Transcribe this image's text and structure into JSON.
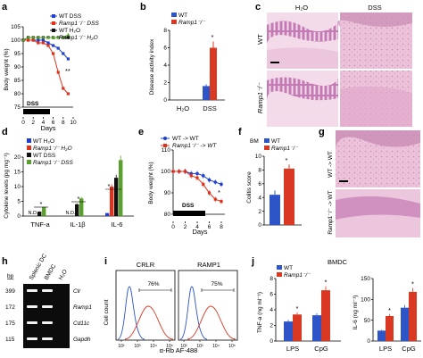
{
  "panels": {
    "a": "a",
    "b": "b",
    "c": "c",
    "d": "d",
    "e": "e",
    "f": "f",
    "g": "g",
    "h": "h",
    "i": "i",
    "j": "j"
  },
  "colors": {
    "wt_dss": "#1f3fd0",
    "ko_dss": "#e0321a",
    "wt_h2o": "#111111",
    "ko_h2o": "#5aa02c",
    "wt": "#2e55c8",
    "ko": "#d93822",
    "tissue": "#e6b0d0",
    "stain": "#9a4a9c"
  },
  "a": {
    "ylabel": "Body weight (%)",
    "xlabel": "Days",
    "yticks": [
      "105",
      "100",
      "95",
      "90",
      "85",
      "80",
      "75"
    ],
    "xticks": [
      "0",
      "2",
      "4",
      "6",
      "8",
      "10"
    ],
    "legend": [
      "WT DSS",
      "Ramp1⁻/⁻ DSS",
      "WT H₂O",
      "Ramp1⁻/⁻ H₂O"
    ],
    "bar_label": "DSS",
    "stars": "**",
    "chart_data": {
      "type": "line",
      "x": [
        0,
        1,
        2,
        3,
        4,
        5,
        6,
        7,
        8,
        9
      ],
      "xlabel": "Days",
      "ylabel": "Body weight (%)",
      "ylim": [
        75,
        105
      ],
      "series": [
        {
          "name": "WT DSS",
          "values": [
            100,
            100,
            100,
            100,
            100,
            99,
            98,
            97,
            95,
            93
          ]
        },
        {
          "name": "Ramp1⁻/⁻ DSS",
          "values": [
            100,
            100,
            100,
            99,
            99,
            98,
            95,
            88,
            82,
            80
          ]
        },
        {
          "name": "WT H₂O",
          "values": [
            100,
            101,
            101,
            101,
            101,
            101,
            101,
            101,
            101,
            101
          ]
        },
        {
          "name": "Ramp1⁻/⁻ H₂O",
          "values": [
            100,
            101,
            101,
            101,
            101,
            101,
            101,
            101,
            101,
            102
          ]
        }
      ]
    }
  },
  "b": {
    "ylabel": "Disease activity index",
    "legend": [
      "WT",
      "Ramp1⁻/⁻"
    ],
    "yticks": [
      "0",
      "2",
      "4",
      "6",
      "8"
    ],
    "groups": [
      "H₂O",
      "DSS"
    ],
    "stars": "*",
    "chart_data": {
      "type": "bar",
      "categories": [
        "H₂O",
        "DSS"
      ],
      "ylabel": "Disease activity index",
      "ylim": [
        0,
        8
      ],
      "series": [
        {
          "name": "WT",
          "values": [
            0,
            1.6
          ]
        },
        {
          "name": "Ramp1⁻/⁻",
          "values": [
            0,
            6.0
          ]
        }
      ]
    }
  },
  "c": {
    "col1": "H₂O",
    "col2": "DSS",
    "row1": "WT",
    "row2": "Ramp1⁻/⁻"
  },
  "d": {
    "ylabel": "Cytokine levels (pg mg⁻¹)",
    "yticks": [
      "0",
      "5",
      "10",
      "15",
      "20"
    ],
    "legend": [
      "WT H₂O",
      "Ramp1⁻/⁻ H₂O",
      "WT DSS",
      "Ramp1⁻/⁻ DSS"
    ],
    "groups": [
      "TNF-a",
      "IL-1β",
      "IL-6"
    ],
    "nd": "N.D.",
    "stars": "*",
    "chart_data": {
      "type": "bar",
      "categories": [
        "TNF-a",
        "IL-1β",
        "IL-6"
      ],
      "ylabel": "Cytokine levels (pg mg⁻¹)",
      "ylim": [
        0,
        20
      ],
      "series": [
        {
          "name": "WT H₂O",
          "values": [
            0,
            0,
            1
          ]
        },
        {
          "name": "Ramp1⁻/⁻ H₂O",
          "values": [
            0,
            0,
            10
          ]
        },
        {
          "name": "WT DSS",
          "values": [
            1.5,
            4,
            13
          ]
        },
        {
          "name": "Ramp1⁻/⁻ DSS",
          "values": [
            3,
            6,
            19
          ]
        }
      ]
    }
  },
  "e": {
    "ylabel": "Body weight (%)",
    "xlabel": "Days",
    "yticks": [
      "110",
      "100",
      "90",
      "80"
    ],
    "xticks": [
      "0",
      "2",
      "4",
      "6",
      "8"
    ],
    "legend": [
      "WT -> WT",
      "Ramp1⁻/⁻ -> WT"
    ],
    "bar_label": "DSS",
    "stars": "*",
    "chart_data": {
      "type": "line",
      "x": [
        0,
        1,
        2,
        3,
        4,
        5,
        6,
        7,
        8
      ],
      "xlabel": "Days",
      "ylabel": "Body weight (%)",
      "ylim": [
        80,
        110
      ],
      "series": [
        {
          "name": "WT -> WT",
          "values": [
            100,
            100,
            100,
            99,
            99,
            98,
            96,
            95,
            94
          ]
        },
        {
          "name": "Ramp1⁻/⁻ -> WT",
          "values": [
            100,
            100,
            100,
            98,
            97,
            94,
            90,
            87,
            86
          ]
        }
      ]
    }
  },
  "f": {
    "ylabel": "Colitis score",
    "legend_title": "BM",
    "legend": [
      "WT",
      "Ramp1⁻/⁻"
    ],
    "yticks": [
      "0",
      "2",
      "4",
      "6",
      "8",
      "10"
    ],
    "stars": "*",
    "chart_data": {
      "type": "bar",
      "categories": [
        "WT",
        "Ramp1⁻/⁻"
      ],
      "ylabel": "Colitis score",
      "ylim": [
        0,
        10
      ],
      "values": [
        4.4,
        8.2
      ]
    }
  },
  "g": {
    "row1": "WT -> WT",
    "row2": "Ramp1⁻/⁻ -> WT"
  },
  "h": {
    "columns": [
      "Splenic DC",
      "BMDC",
      "H₂O"
    ],
    "bp_label": "bp",
    "rows": [
      {
        "bp": "399",
        "gene": "Clr"
      },
      {
        "bp": "172",
        "gene": "Ramp1"
      },
      {
        "bp": "175",
        "gene": "Cd11c"
      },
      {
        "bp": "115",
        "gene": "Gapdh"
      }
    ]
  },
  "i": {
    "titles": [
      "CRLR",
      "RAMP1"
    ],
    "pcts": [
      "76%",
      "75%"
    ],
    "ylabel": "Cell count",
    "xlabel": "α-Rb AF-488",
    "ticks": [
      "10²",
      "10³",
      "10⁴",
      "10⁵"
    ]
  },
  "j": {
    "title": "BMDC",
    "legend": [
      "WT",
      "Ramp1⁻/⁻"
    ],
    "left": {
      "ylabel": "TNF-a (ng ml⁻¹)",
      "yticks": [
        "0",
        "2",
        "4",
        "6",
        "8"
      ]
    },
    "right": {
      "ylabel": "IL-6 (ng ml⁻¹)",
      "yticks": [
        "0",
        "50",
        "100",
        "150"
      ]
    },
    "groups": [
      "LPS",
      "CpG"
    ],
    "stars": "*",
    "chart_data": [
      {
        "type": "bar",
        "categories": [
          "LPS",
          "CpG"
        ],
        "ylabel": "TNF-a (ng ml⁻¹)",
        "ylim": [
          0,
          8
        ],
        "series": [
          {
            "name": "WT",
            "values": [
              2.5,
              3.3
            ]
          },
          {
            "name": "Ramp1⁻/⁻",
            "values": [
              3.4,
              6.5
            ]
          }
        ]
      },
      {
        "type": "bar",
        "categories": [
          "LPS",
          "CpG"
        ],
        "ylabel": "IL-6 (ng ml⁻¹)",
        "ylim": [
          0,
          150
        ],
        "series": [
          {
            "name": "WT",
            "values": [
              25,
              80
            ]
          },
          {
            "name": "Ramp1⁻/⁻",
            "values": [
              60,
              118
            ]
          }
        ]
      }
    ]
  }
}
